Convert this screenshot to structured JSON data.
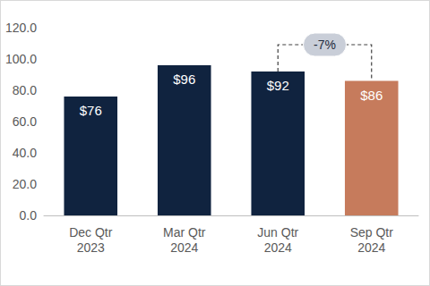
{
  "chart_data": {
    "type": "bar",
    "categories": [
      "Dec Qtr\n2023",
      "Mar Qtr\n2024",
      "Jun Qtr\n2024",
      "Sep Qtr\n2024"
    ],
    "values": [
      76,
      96,
      92,
      86
    ],
    "value_labels": [
      "$76",
      "$96",
      "$92",
      "$86"
    ],
    "colors": [
      "#10233f",
      "#10233f",
      "#10233f",
      "#c67b5c"
    ],
    "data_labels": true,
    "grid": false,
    "ylim": [
      0,
      120
    ],
    "yticks": [
      {
        "value": 0,
        "label": "0.0"
      },
      {
        "value": 20,
        "label": "20.0"
      },
      {
        "value": 40,
        "label": "40.0"
      },
      {
        "value": 60,
        "label": "60.0"
      },
      {
        "value": 80,
        "label": "80.0"
      },
      {
        "value": 100,
        "label": "100.0"
      },
      {
        "value": 120,
        "label": "120.0"
      }
    ],
    "annotation": {
      "text": "-7%",
      "between": [
        "Jun Qtr\n2024",
        "Sep Qtr\n2024"
      ]
    }
  }
}
